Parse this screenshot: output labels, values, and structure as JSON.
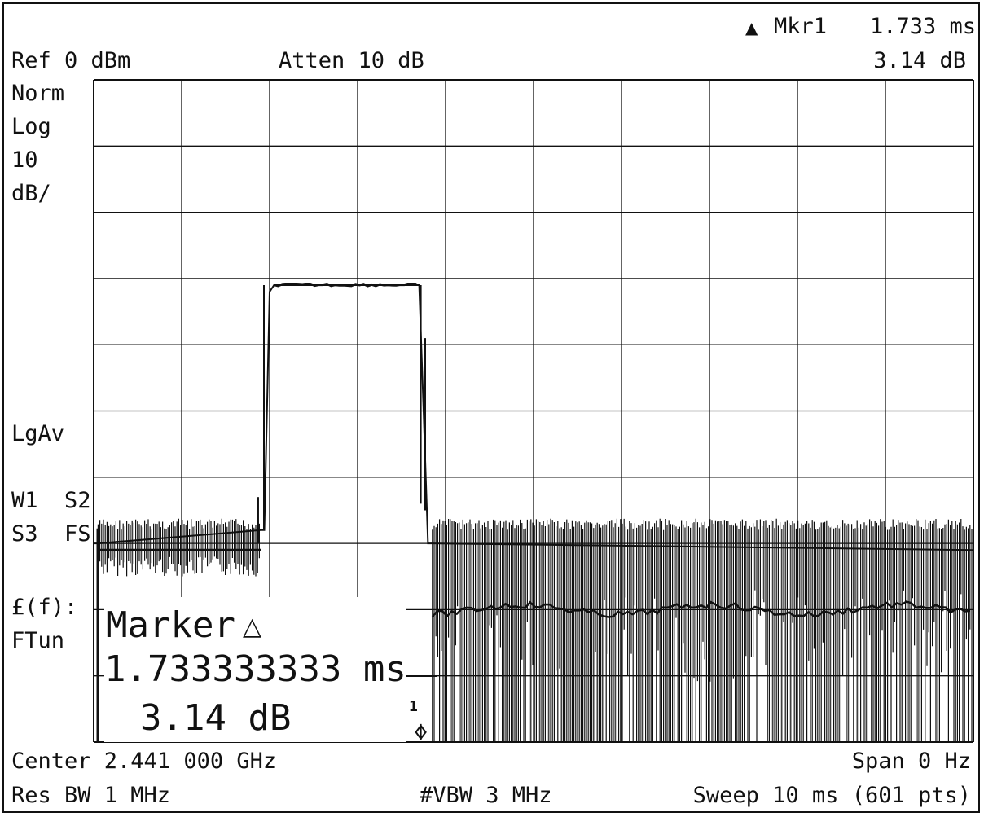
{
  "header": {
    "ref": "Ref 0 dBm",
    "atten": "Atten 10 dB",
    "marker_label": "Mkr1",
    "marker_time": "1.733 ms",
    "marker_level": "3.14 dB"
  },
  "sidebar": {
    "norm": "Norm",
    "log": "Log",
    "scale_value": "10",
    "scale_unit": "dB/",
    "avg": "LgAv",
    "traces_1": "W1  S2",
    "traces_2": "S3  FS",
    "func_1": "£(f):",
    "func_2": "FTun"
  },
  "marker_panel": {
    "title": "Marker",
    "time": "1.733333333 ms",
    "level": "3.14 dB",
    "tag": "1"
  },
  "footer": {
    "center": "Center 2.441 000 GHz",
    "span": "Span 0 Hz",
    "res_bw": "Res BW 1 MHz",
    "vbw": "#VBW 3 MHz",
    "sweep": "Sweep 10 ms (601 pts)"
  },
  "chart_data": {
    "type": "line",
    "x_unit": "ms",
    "y_unit": "dBm",
    "xlim": [
      0,
      10
    ],
    "ylim": [
      -100,
      0
    ],
    "grid": true,
    "grid_divisions_x": 10,
    "grid_divisions_y": 10,
    "series": [
      {
        "style": "burst",
        "x": [
          0,
          0.05,
          1.9,
          1.94,
          2.0,
          2.05,
          3.5,
          3.7,
          3.75,
          3.8,
          3.85,
          10
        ],
        "y": [
          -70,
          -70,
          -68,
          -68,
          -32,
          -31,
          -31,
          -31,
          -50,
          -70,
          -70,
          -71
        ]
      }
    ],
    "noise_floor": {
      "pre_burst_x": [
        0.05,
        1.9
      ],
      "post_burst_x": [
        3.85,
        10
      ],
      "level_dbm": -71,
      "top_dbm": -67,
      "bottom_dbm": -100
    },
    "marker": {
      "x": 3.7,
      "y": -99
    }
  },
  "colors": {
    "trace": "#111111",
    "grid": "#111111",
    "background": "#ffffff"
  }
}
